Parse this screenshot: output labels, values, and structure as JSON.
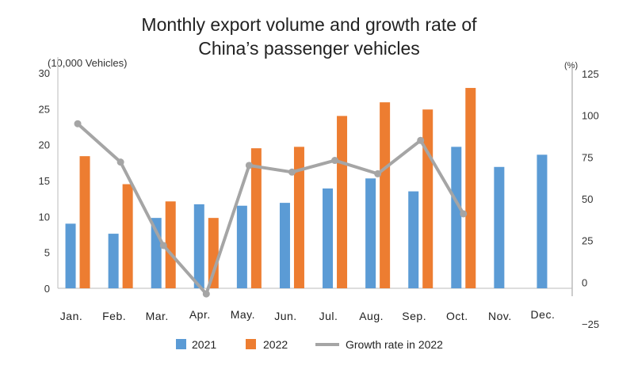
{
  "chart_data": {
    "type": "bar",
    "title_lines": [
      "Monthly export volume and growth rate of",
      "China’s passenger vehicles"
    ],
    "ylabel_left": "(10,000 Vehicles)",
    "ylabel_right": "(%)",
    "ylim_left": [
      0,
      30
    ],
    "yticks_left": [
      "0",
      "5",
      "10",
      "15",
      "20",
      "25",
      "30"
    ],
    "ylim_right": [
      -25,
      125
    ],
    "yticks_right": [
      "−25",
      "0",
      "25",
      "50",
      "75",
      "100",
      "125"
    ],
    "categories": [
      "Jan.",
      "Feb.",
      "Mar.",
      "Apr.",
      "May.",
      "Jun.",
      "Jul.",
      "Aug.",
      "Sep.",
      "Oct.",
      "Nov.",
      "Dec."
    ],
    "series": [
      {
        "name": "2021",
        "type": "bar",
        "axis": "left",
        "color": "#5b9bd5",
        "values": [
          9.0,
          7.6,
          9.8,
          11.7,
          11.5,
          11.9,
          13.9,
          15.3,
          13.5,
          19.7,
          16.9,
          18.6
        ]
      },
      {
        "name": "2022",
        "type": "bar",
        "axis": "left",
        "color": "#ed7d31",
        "values": [
          18.4,
          14.5,
          12.1,
          9.8,
          19.5,
          19.7,
          24.0,
          25.9,
          24.9,
          27.9,
          null,
          null
        ]
      },
      {
        "name": "Growth rate in 2022",
        "type": "line",
        "axis": "right",
        "color": "#a5a5a5",
        "values": [
          95,
          72,
          22,
          -7,
          70,
          66,
          73,
          65,
          85,
          41,
          null,
          null
        ]
      }
    ],
    "negative_tick_color": "#e03030",
    "grid": false,
    "legend_position": "bottom"
  }
}
